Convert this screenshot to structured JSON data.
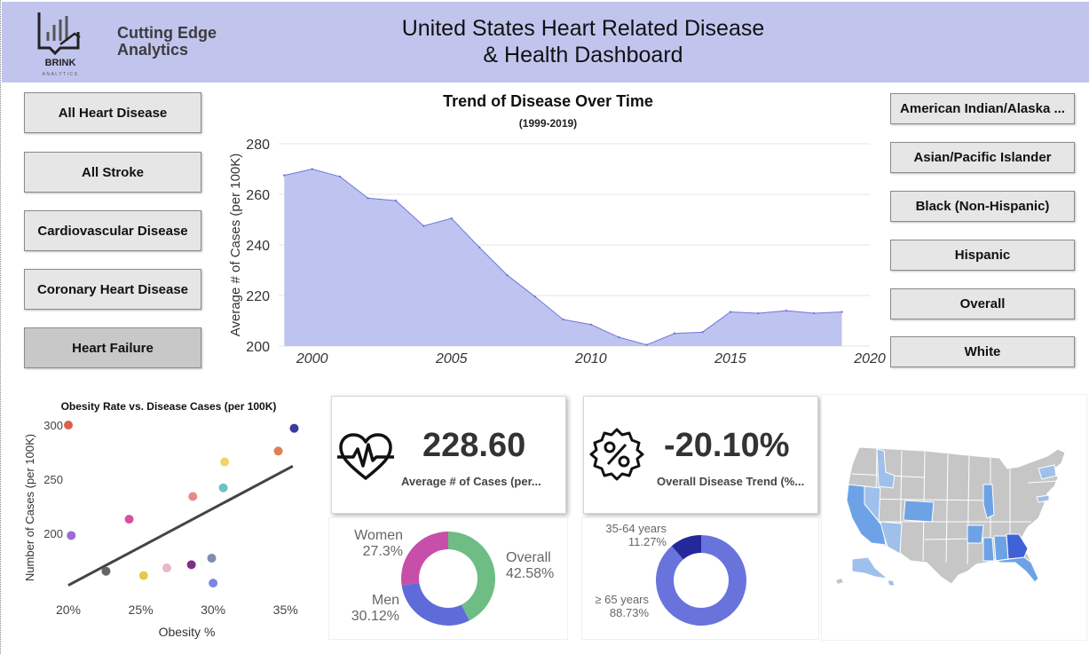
{
  "header": {
    "logo_text": "BRINK",
    "logo_sub": "ANALYTICS",
    "brand_line1": "Cutting Edge",
    "brand_line2": "Analytics",
    "title_line1": "United States Heart Related Disease",
    "title_line2": "& Health Dashboard"
  },
  "disease_filters": [
    {
      "label": "All Heart Disease",
      "selected": false
    },
    {
      "label": "All Stroke",
      "selected": false
    },
    {
      "label": "Cardiovascular Disease",
      "selected": false
    },
    {
      "label": "Coronary Heart Disease",
      "selected": false
    },
    {
      "label": "Heart Failure",
      "selected": true
    }
  ],
  "race_filters": [
    {
      "label": "American Indian/Alaska ..."
    },
    {
      "label": "Asian/Pacific Islander"
    },
    {
      "label": "Black (Non-Hispanic)"
    },
    {
      "label": "Hispanic"
    },
    {
      "label": "Overall"
    },
    {
      "label": "White"
    }
  ],
  "trend": {
    "title": "Trend of Disease Over Time",
    "subtitle": "(1999-2019)"
  },
  "kpi": {
    "avg_value": "228.60",
    "avg_label": "Average # of Cases (per...",
    "trend_value": "-20.10%",
    "trend_label": "Overall Disease Trend (%..."
  },
  "colors": {
    "header_bg": "#c1c5ee",
    "area_fill": "#bfc3f0",
    "area_line": "#6f78d8",
    "donut_overall": "#6dbd85",
    "donut_men": "#5f6bd9",
    "donut_women": "#c74ea9",
    "age_senior": "#6874dc",
    "age_mid": "#24289a",
    "map_default": "#c6c6c6",
    "map_light": "#9ec0ea",
    "map_mid": "#6da3e6",
    "map_dark": "#3f62d6"
  },
  "chart_data": [
    {
      "type": "area",
      "title": "Trend of Disease Over Time",
      "subtitle": "(1999-2019)",
      "xlabel": "",
      "ylabel": "Average # of Cases (per 100K)",
      "x": [
        1999,
        2000,
        2001,
        2002,
        2003,
        2004,
        2005,
        2006,
        2007,
        2008,
        2009,
        2010,
        2011,
        2012,
        2013,
        2014,
        2015,
        2016,
        2017,
        2018,
        2019
      ],
      "values": [
        267.5,
        270,
        267,
        258.5,
        257.5,
        247.5,
        250.5,
        239,
        228,
        219.5,
        210.5,
        208.5,
        203.5,
        200.5,
        205,
        205.5,
        213.5,
        213,
        214,
        213,
        213.5
      ],
      "xlim": [
        1998.8,
        2020
      ],
      "ylim": [
        200,
        280
      ],
      "x_ticks": [
        2000,
        2005,
        2010,
        2015,
        2020
      ],
      "y_ticks": [
        200,
        220,
        240,
        260,
        280
      ],
      "grid": true
    },
    {
      "type": "scatter",
      "title": "Obesity Rate vs. Disease Cases (per 100K)",
      "xlabel": "Obesity %",
      "ylabel": "Number of Cases (per 100K)",
      "xlim": [
        20,
        36
      ],
      "ylim": [
        150,
        300
      ],
      "x_ticks": [
        "20%",
        "25%",
        "30%",
        "35%"
      ],
      "y_ticks": [
        200,
        250,
        300
      ],
      "points": [
        {
          "x": 20.0,
          "y": 300,
          "color": "#d9604c"
        },
        {
          "x": 20.2,
          "y": 198,
          "color": "#9b6bd6"
        },
        {
          "x": 22.6,
          "y": 165,
          "color": "#666666"
        },
        {
          "x": 24.2,
          "y": 213,
          "color": "#d650a0"
        },
        {
          "x": 25.2,
          "y": 161,
          "color": "#e8c74a"
        },
        {
          "x": 26.8,
          "y": 168,
          "color": "#e8b7c9"
        },
        {
          "x": 28.5,
          "y": 171,
          "color": "#7d2f86"
        },
        {
          "x": 28.6,
          "y": 234,
          "color": "#e88a8a"
        },
        {
          "x": 29.9,
          "y": 177,
          "color": "#7e8eab"
        },
        {
          "x": 30.0,
          "y": 154,
          "color": "#7b86e8"
        },
        {
          "x": 30.7,
          "y": 242,
          "color": "#6bc2c5"
        },
        {
          "x": 30.8,
          "y": 266,
          "color": "#f0d36a"
        },
        {
          "x": 34.5,
          "y": 276,
          "color": "#de8055"
        },
        {
          "x": 35.6,
          "y": 297,
          "color": "#3a3b9b"
        }
      ],
      "trendline": {
        "x": [
          20.0,
          35.5
        ],
        "y": [
          152,
          262
        ]
      }
    },
    {
      "type": "pie",
      "title": "",
      "labels": [
        "Overall",
        "Men",
        "Women"
      ],
      "values": [
        42.58,
        30.12,
        27.3
      ],
      "value_labels": [
        "42.58%",
        "30.12%",
        "27.3%"
      ]
    },
    {
      "type": "pie",
      "title": "",
      "labels": [
        "≥ 65 years",
        "35-64 years"
      ],
      "values": [
        88.73,
        11.27
      ],
      "value_labels": [
        "88.73%",
        "11.27%"
      ]
    }
  ],
  "map": {
    "state_shading": {
      "CA": "map_mid",
      "NV": "map_light",
      "AZ": "map_light",
      "CO": "map_mid",
      "ID": "map_light",
      "AR": "map_mid",
      "MS": "map_mid",
      "AL": "map_mid",
      "GA": "map_dark",
      "FL": "map_mid",
      "IL": "map_mid",
      "MD": "map_light",
      "NY": "map_light",
      "AK": "map_light",
      "HI": "map_light"
    }
  }
}
